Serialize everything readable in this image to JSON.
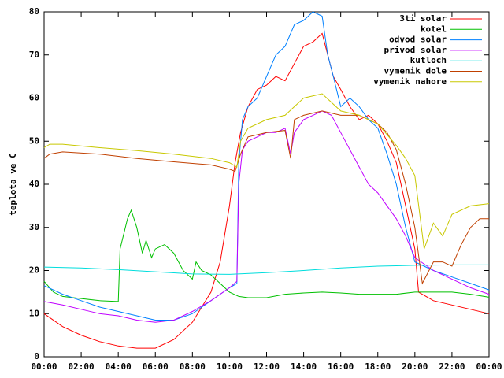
{
  "chart_data": {
    "type": "line",
    "ylabel": "teplota ve C",
    "xlim": [
      0,
      24
    ],
    "ylim": [
      0,
      80
    ],
    "xticks": [
      {
        "value": 0,
        "label": "00:00"
      },
      {
        "value": 2,
        "label": "02:00"
      },
      {
        "value": 4,
        "label": "04:00"
      },
      {
        "value": 6,
        "label": "06:00"
      },
      {
        "value": 8,
        "label": "08:00"
      },
      {
        "value": 10,
        "label": "10:00"
      },
      {
        "value": 12,
        "label": "12:00"
      },
      {
        "value": 14,
        "label": "14:00"
      },
      {
        "value": 16,
        "label": "16:00"
      },
      {
        "value": 18,
        "label": "18:00"
      },
      {
        "value": 20,
        "label": "20:00"
      },
      {
        "value": 22,
        "label": "22:00"
      },
      {
        "value": 24,
        "label": "00:00"
      }
    ],
    "yticks": [
      0,
      10,
      20,
      30,
      40,
      50,
      60,
      70,
      80
    ],
    "legend": "top-right",
    "series": [
      {
        "name": "3ti solar",
        "color": "#ff0000",
        "x": [
          0,
          1,
          2,
          3,
          4,
          5,
          6,
          7,
          8,
          9,
          9.5,
          10,
          10.3,
          10.6,
          11,
          11.5,
          12,
          12.5,
          13,
          13.5,
          14,
          14.5,
          15,
          15.3,
          15.6,
          16,
          16.5,
          17,
          17.5,
          18,
          18.5,
          19,
          19.5,
          20,
          20.2,
          21,
          22,
          23,
          24
        ],
        "values": [
          10,
          7,
          5,
          3.5,
          2.5,
          2,
          2,
          4,
          8,
          15,
          22,
          35,
          45,
          52,
          58,
          62,
          63,
          65,
          64,
          68,
          72,
          73,
          75,
          70,
          65,
          62,
          58,
          55,
          56,
          54,
          50,
          45,
          35,
          25,
          15,
          13,
          12,
          11,
          10
        ]
      },
      {
        "name": "kotel",
        "color": "#00c000",
        "x": [
          0,
          0.5,
          1,
          2,
          3,
          4,
          4.1,
          4.5,
          4.7,
          5,
          5.3,
          5.5,
          5.8,
          6,
          6.5,
          7,
          7.5,
          8,
          8.2,
          8.5,
          9,
          10,
          10.5,
          11,
          12,
          13,
          14,
          15,
          16,
          17,
          18,
          19,
          20,
          21,
          22,
          23,
          24
        ],
        "values": [
          17.5,
          15,
          14,
          13.5,
          13,
          12.8,
          25,
          32,
          34,
          30,
          24,
          27,
          23,
          25,
          26,
          24,
          20,
          18,
          22,
          20,
          19,
          15,
          14,
          13.7,
          13.7,
          14.5,
          14.8,
          15,
          14.8,
          14.5,
          14.5,
          14.5,
          15,
          15,
          15,
          14.5,
          13.8
        ]
      },
      {
        "name": "odvod solar",
        "color": "#0080ff",
        "x": [
          0,
          1,
          2,
          3,
          4,
          5,
          6,
          7,
          8,
          9,
          10,
          10.4,
          10.5,
          10.7,
          11,
          11.5,
          12,
          12.5,
          13,
          13.5,
          14,
          14.5,
          15,
          15.3,
          15.6,
          16,
          16.5,
          17,
          17.5,
          18,
          18.5,
          19,
          19.5,
          20,
          21,
          22,
          23,
          24
        ],
        "values": [
          16.5,
          14.5,
          13,
          11.5,
          10.5,
          9.5,
          8.5,
          8.5,
          10,
          13,
          16,
          17,
          45,
          55,
          58,
          60,
          65,
          70,
          72,
          77,
          78,
          80,
          79,
          70,
          65,
          58,
          60,
          58,
          55,
          53,
          47,
          40,
          30,
          22,
          20,
          18.5,
          17,
          15.5
        ]
      },
      {
        "name": "privod solar",
        "color": "#c000ff",
        "x": [
          0,
          1,
          2,
          3,
          4,
          5,
          6,
          7,
          8,
          9,
          10,
          10.4,
          10.5,
          10.7,
          11,
          11.5,
          12,
          12.5,
          13,
          13.3,
          13.5,
          14,
          14.5,
          15,
          15.5,
          16,
          16.5,
          17,
          17.5,
          18,
          18.5,
          19,
          19.5,
          20,
          21,
          22,
          23,
          24
        ],
        "values": [
          12.8,
          12,
          11,
          10,
          9.5,
          8.5,
          8,
          8.5,
          10.5,
          13,
          16,
          17.5,
          40,
          48,
          50,
          51,
          52,
          52,
          53,
          47,
          52,
          55,
          56,
          57,
          56,
          52,
          48,
          44,
          40,
          38,
          35,
          32,
          28,
          23,
          20,
          18,
          16,
          14.5
        ]
      },
      {
        "name": "kutloch",
        "color": "#00dddd",
        "x": [
          0,
          2,
          4,
          6,
          8,
          10,
          12,
          14,
          16,
          18,
          20,
          22,
          24
        ],
        "values": [
          20.8,
          20.6,
          20.2,
          19.7,
          19.2,
          19.1,
          19.5,
          20,
          20.6,
          21,
          21.2,
          21.3,
          21.3
        ]
      },
      {
        "name": "vymenik dole",
        "color": "#c04000",
        "x": [
          0,
          0.3,
          1,
          3,
          5,
          7,
          9,
          10,
          10.3,
          10.6,
          11,
          12,
          13,
          13.3,
          13.5,
          14,
          15,
          16,
          17,
          17.5,
          18,
          18.5,
          19,
          19.5,
          20,
          20.4,
          21,
          21.5,
          22,
          22.5,
          23,
          23.5,
          24
        ],
        "values": [
          46,
          47,
          47.5,
          47,
          46,
          45.2,
          44.5,
          43.5,
          43,
          47,
          51,
          52,
          52.5,
          46,
          55,
          56,
          57,
          56,
          56,
          55,
          54,
          52,
          48,
          40,
          30,
          17,
          22,
          22,
          21,
          26,
          30,
          32,
          32
        ]
      },
      {
        "name": "vymenik nahore",
        "color": "#c8c800",
        "x": [
          0,
          0.3,
          1,
          3,
          5,
          7,
          9,
          10,
          10.4,
          10.6,
          11,
          12,
          13,
          13.5,
          14,
          15,
          15.5,
          16,
          17,
          18,
          19,
          19.5,
          20,
          20.5,
          21,
          21.5,
          22,
          23,
          24
        ],
        "values": [
          48.5,
          49.3,
          49.3,
          48.5,
          47.8,
          47,
          46,
          45,
          44,
          50,
          53,
          55,
          56,
          58,
          60,
          61,
          59,
          57,
          56,
          54,
          49,
          46,
          42,
          25,
          31,
          28,
          33,
          35,
          35.5
        ]
      }
    ]
  }
}
